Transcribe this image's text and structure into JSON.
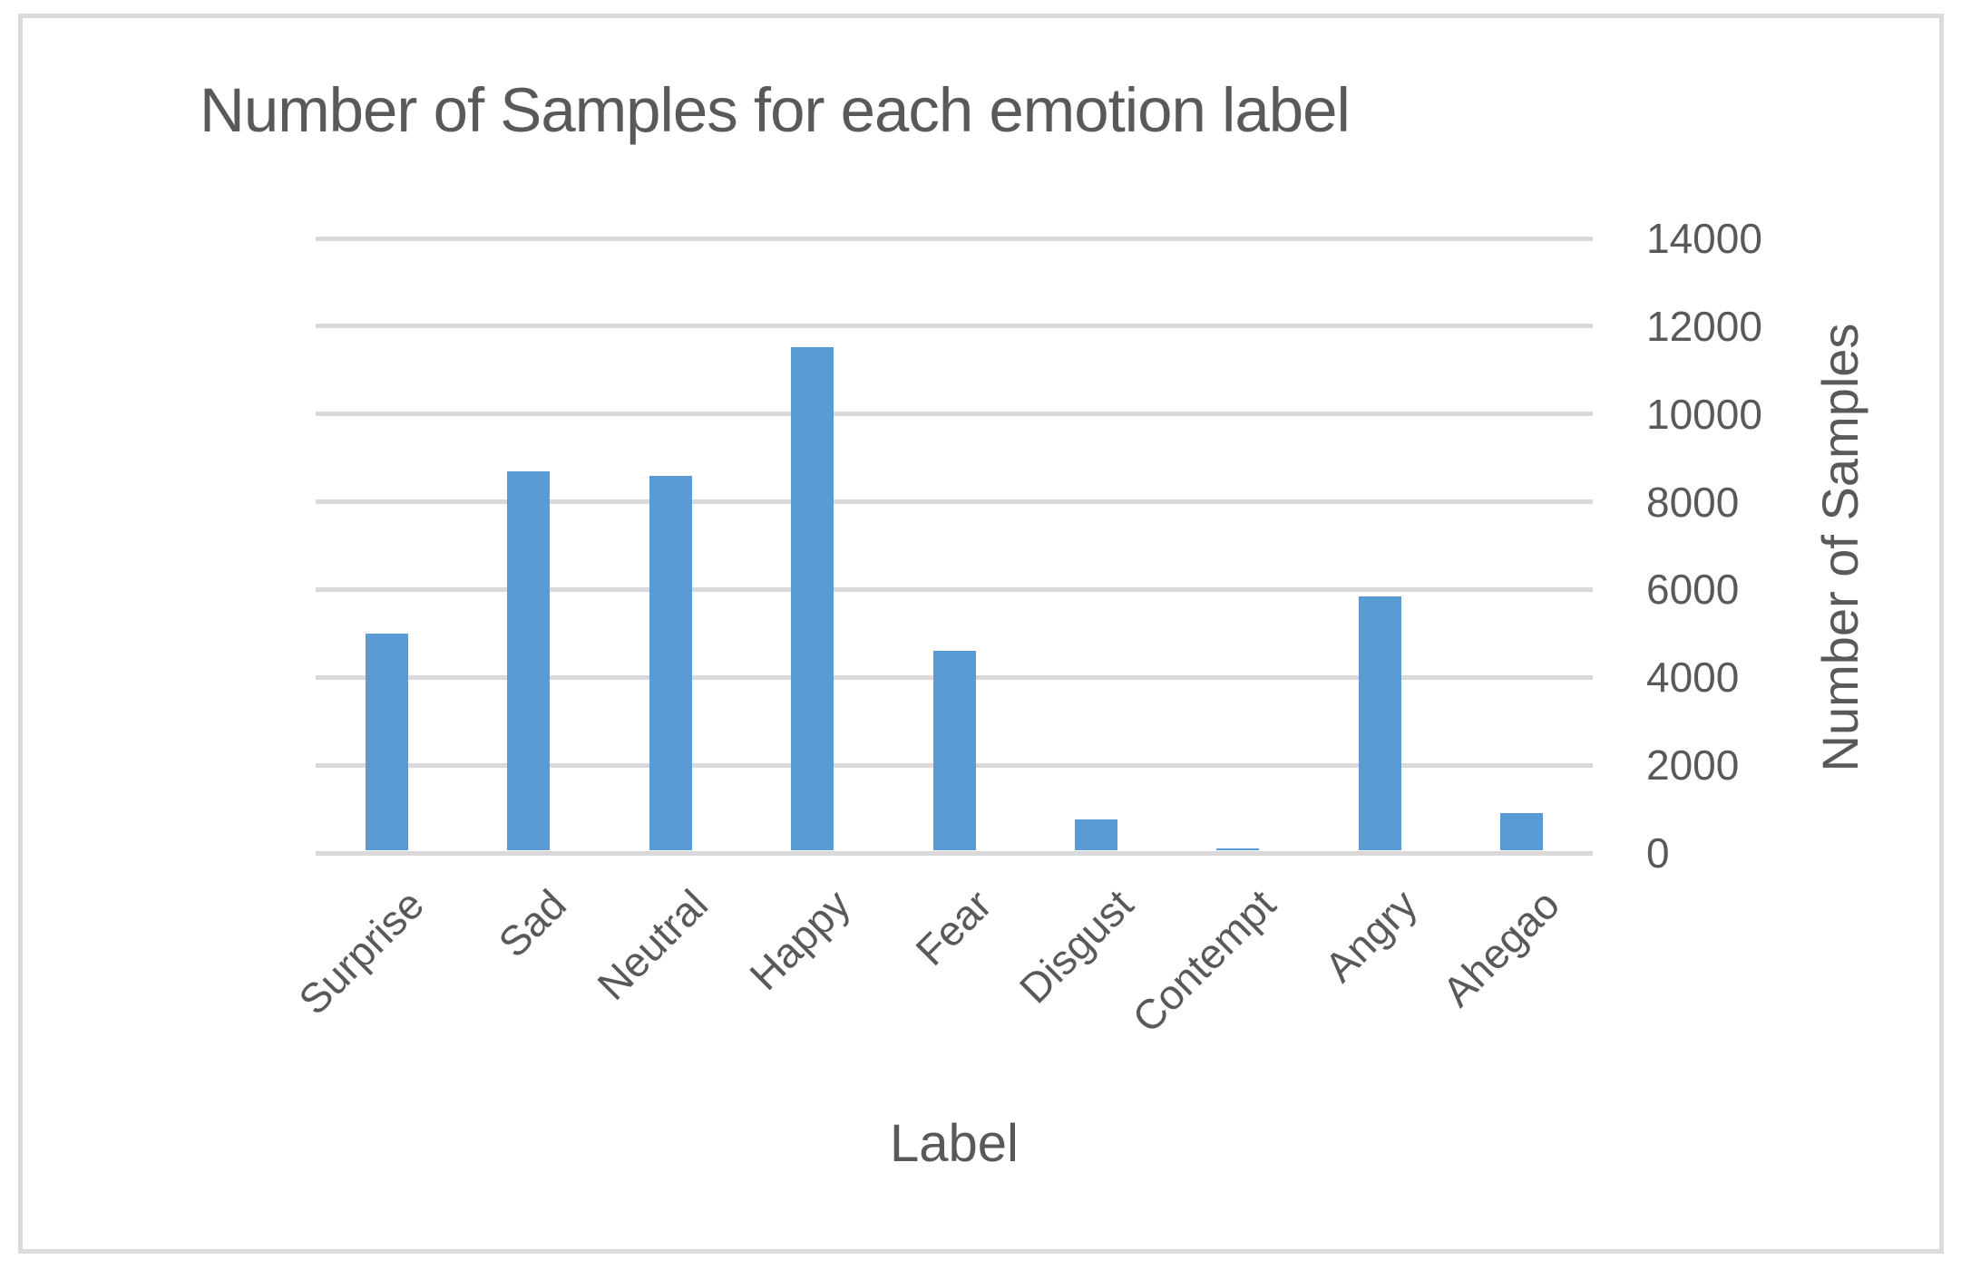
{
  "chart_data": {
    "type": "bar",
    "title": "Number of Samples for each emotion label",
    "xlabel": "Label",
    "ylabel": "Number of Samples",
    "categories": [
      "Surprise",
      "Sad",
      "Neutral",
      "Happy",
      "Fear",
      "Disgust",
      "Contempt",
      "Angry",
      "Ahegao"
    ],
    "values": [
      5000,
      8700,
      8600,
      11520,
      4600,
      770,
      100,
      5840,
      910
    ],
    "ylim": [
      0,
      14000
    ],
    "ytick_interval": 2000,
    "yticks": [
      0,
      2000,
      4000,
      6000,
      8000,
      10000,
      12000,
      14000
    ],
    "grid": true,
    "legend": "none",
    "value_axis_side": "right",
    "x_tick_rotation_deg": -45,
    "bar_color": "#5b9bd5",
    "gridline_color": "#d9d9d9",
    "text_color": "#595959",
    "frame_border_color": "#dbdbdb"
  }
}
